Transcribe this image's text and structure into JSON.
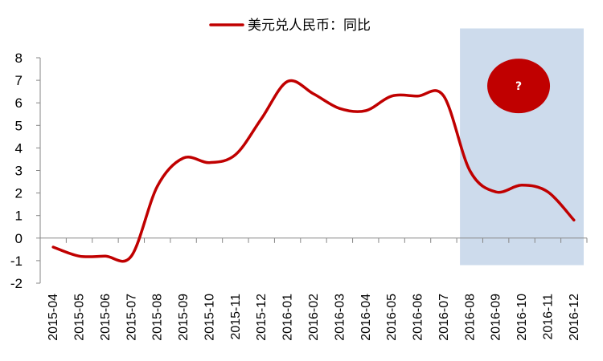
{
  "chart_data": {
    "type": "line",
    "title": "",
    "xlabel": "",
    "ylabel": "",
    "categories": [
      "2015-04",
      "2015-05",
      "2015-06",
      "2015-07",
      "2015-08",
      "2015-09",
      "2015-10",
      "2015-11",
      "2015-12",
      "2016-01",
      "2016-02",
      "2016-03",
      "2016-04",
      "2016-05",
      "2016-06",
      "2016-07",
      "2016-08",
      "2016-09",
      "2016-10",
      "2016-11",
      "2016-12"
    ],
    "series": [
      {
        "name": "美元兑人民币：同比",
        "color": "#c00000",
        "values": [
          -0.4,
          -0.8,
          -0.8,
          -0.8,
          2.3,
          3.55,
          3.35,
          3.7,
          5.3,
          6.95,
          6.4,
          5.75,
          5.65,
          6.3,
          6.3,
          6.3,
          3.0,
          2.05,
          2.35,
          2.05,
          0.8
        ]
      }
    ],
    "ylim": [
      -2,
      8
    ],
    "yticks": [
      -2,
      -1,
      0,
      1,
      2,
      3,
      4,
      5,
      6,
      7,
      8
    ],
    "grid": false,
    "legend_position": "top-center",
    "highlight": {
      "from_category": "2016-08",
      "to_category": "2016-12",
      "color": "#cddbec",
      "ylim": [
        -1.2,
        9.3
      ]
    },
    "annotation": {
      "text": "?",
      "category_position": 18,
      "y": 6.75,
      "color": "#c00000"
    }
  }
}
